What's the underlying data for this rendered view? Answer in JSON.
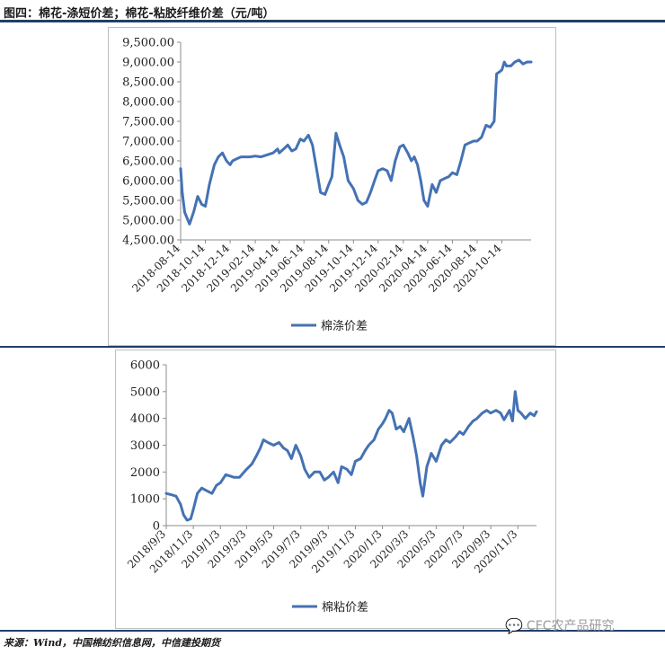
{
  "figure_title": "图四：棉花-涤短价差；棉花-粘胶纤维价差（元/吨）",
  "source_text": "来源：Wind，中国棉纺织信息网，中信建投期货",
  "watermark_text": "CFC农产品研究",
  "colors": {
    "line": "#4472b4",
    "rule": "#1f3f6b",
    "axis": "#8c8c8c"
  },
  "chart_data": [
    {
      "type": "line",
      "title": "",
      "xlabel": "",
      "ylabel": "",
      "ylim": [
        4500,
        9500
      ],
      "yticks": [
        4500,
        5000,
        5500,
        6000,
        6500,
        7000,
        7500,
        8000,
        8500,
        9000,
        9500
      ],
      "ytick_labels": [
        "4,500.00",
        "5,000.00",
        "5,500.00",
        "6,000.00",
        "6,500.00",
        "7,000.00",
        "7,500.00",
        "8,000.00",
        "8,500.00",
        "9,000.00",
        "9,500.00"
      ],
      "x_start": "2018-08-14",
      "x_end": "2020-12-25",
      "xtick_labels": [
        "2018-08-14",
        "2018-10-14",
        "2018-12-14",
        "2019-02-14",
        "2019-04-14",
        "2019-06-14",
        "2019-08-14",
        "2019-10-14",
        "2019-12-14",
        "2020-02-14",
        "2020-04-14",
        "2020-06-14",
        "2020-08-14",
        "2020-10-14"
      ],
      "grid": false,
      "legend_position": "bottom",
      "series": [
        {
          "name": "棉涤价差",
          "x": [
            "2018-08-14",
            "2018-08-18",
            "2018-08-24",
            "2018-09-05",
            "2018-09-15",
            "2018-09-25",
            "2018-10-05",
            "2018-10-14",
            "2018-10-24",
            "2018-11-05",
            "2018-11-15",
            "2018-11-25",
            "2018-12-05",
            "2018-12-14",
            "2018-12-20",
            "2018-12-30",
            "2019-01-10",
            "2019-01-20",
            "2019-02-01",
            "2019-02-14",
            "2019-02-28",
            "2019-03-15",
            "2019-03-30",
            "2019-04-10",
            "2019-04-14",
            "2019-04-25",
            "2019-05-05",
            "2019-05-15",
            "2019-05-25",
            "2019-06-05",
            "2019-06-14",
            "2019-06-25",
            "2019-07-05",
            "2019-07-15",
            "2019-07-25",
            "2019-08-05",
            "2019-08-14",
            "2019-08-22",
            "2019-09-01",
            "2019-09-10",
            "2019-09-20",
            "2019-10-01",
            "2019-10-14",
            "2019-10-25",
            "2019-11-05",
            "2019-11-15",
            "2019-11-25",
            "2019-12-05",
            "2019-12-14",
            "2019-12-25",
            "2020-01-05",
            "2020-01-15",
            "2020-01-25",
            "2020-02-05",
            "2020-02-14",
            "2020-02-25",
            "2020-03-05",
            "2020-03-12",
            "2020-03-20",
            "2020-03-28",
            "2020-04-05",
            "2020-04-14",
            "2020-04-25",
            "2020-05-05",
            "2020-05-15",
            "2020-05-25",
            "2020-06-05",
            "2020-06-14",
            "2020-06-25",
            "2020-07-05",
            "2020-07-15",
            "2020-07-25",
            "2020-08-05",
            "2020-08-14",
            "2020-08-25",
            "2020-09-05",
            "2020-09-15",
            "2020-09-25",
            "2020-10-01",
            "2020-10-08",
            "2020-10-14",
            "2020-10-20",
            "2020-10-25",
            "2020-11-05",
            "2020-11-15",
            "2020-11-25",
            "2020-12-05",
            "2020-12-15",
            "2020-12-25"
          ],
          "values": [
            6300,
            5700,
            5200,
            4900,
            5200,
            5600,
            5400,
            5350,
            5900,
            6400,
            6600,
            6700,
            6500,
            6400,
            6500,
            6550,
            6600,
            6600,
            6600,
            6620,
            6600,
            6650,
            6700,
            6800,
            6700,
            6800,
            6900,
            6750,
            6800,
            7050,
            7000,
            7150,
            6900,
            6300,
            5700,
            5650,
            5900,
            6100,
            7200,
            6900,
            6600,
            6000,
            5800,
            5500,
            5400,
            5450,
            5700,
            6000,
            6250,
            6300,
            6250,
            6000,
            6500,
            6850,
            6900,
            6700,
            6500,
            6600,
            6400,
            6000,
            5500,
            5350,
            5900,
            5700,
            6000,
            6050,
            6100,
            6200,
            6150,
            6500,
            6900,
            6950,
            7000,
            7000,
            7100,
            7400,
            7350,
            7500,
            8700,
            8750,
            8800,
            9000,
            8900,
            8900,
            9000,
            9050,
            8950,
            9000,
            9000
          ]
        }
      ]
    },
    {
      "type": "line",
      "title": "",
      "xlabel": "",
      "ylabel": "",
      "ylim": [
        0,
        6000
      ],
      "yticks": [
        0,
        1000,
        2000,
        3000,
        4000,
        5000,
        6000
      ],
      "ytick_labels": [
        "0",
        "1000",
        "2000",
        "3000",
        "4000",
        "5000",
        "6000"
      ],
      "x_start": "2018-09-03",
      "x_end": "2020-12-15",
      "xtick_labels": [
        "2018/9/3",
        "2018/11/3",
        "2019/1/3",
        "2019/3/3",
        "2019/5/3",
        "2019/7/3",
        "2019/9/3",
        "2019/11/3",
        "2020/1/3",
        "2020/3/3",
        "2020/5/3",
        "2020/7/3",
        "2020/9/3",
        "2020/11/3"
      ],
      "grid": false,
      "legend_position": "bottom",
      "series": [
        {
          "name": "棉粘价差",
          "x": [
            "2018-09-03",
            "2018-09-15",
            "2018-09-25",
            "2018-10-05",
            "2018-10-12",
            "2018-10-20",
            "2018-10-28",
            "2018-11-03",
            "2018-11-12",
            "2018-11-22",
            "2018-12-03",
            "2018-12-15",
            "2018-12-25",
            "2019-01-03",
            "2019-01-15",
            "2019-01-25",
            "2019-02-03",
            "2019-02-15",
            "2019-03-03",
            "2019-03-15",
            "2019-03-25",
            "2019-04-03",
            "2019-04-10",
            "2019-04-20",
            "2019-05-03",
            "2019-05-15",
            "2019-05-25",
            "2019-06-03",
            "2019-06-12",
            "2019-06-22",
            "2019-07-03",
            "2019-07-12",
            "2019-07-22",
            "2019-08-03",
            "2019-08-15",
            "2019-08-25",
            "2019-09-03",
            "2019-09-15",
            "2019-09-25",
            "2019-10-03",
            "2019-10-15",
            "2019-10-25",
            "2019-11-03",
            "2019-11-15",
            "2019-11-25",
            "2019-12-03",
            "2019-12-15",
            "2019-12-25",
            "2020-01-03",
            "2020-01-10",
            "2020-01-18",
            "2020-01-25",
            "2020-02-03",
            "2020-02-12",
            "2020-02-20",
            "2020-03-03",
            "2020-03-12",
            "2020-03-20",
            "2020-03-28",
            "2020-04-03",
            "2020-04-12",
            "2020-04-22",
            "2020-05-03",
            "2020-05-15",
            "2020-05-25",
            "2020-06-03",
            "2020-06-15",
            "2020-06-25",
            "2020-07-03",
            "2020-07-15",
            "2020-07-25",
            "2020-08-03",
            "2020-08-15",
            "2020-08-25",
            "2020-09-03",
            "2020-09-15",
            "2020-09-25",
            "2020-10-03",
            "2020-10-15",
            "2020-10-22",
            "2020-10-28",
            "2020-11-03",
            "2020-11-10",
            "2020-11-20",
            "2020-12-01",
            "2020-12-10",
            "2020-12-15"
          ],
          "values": [
            1200,
            1150,
            1100,
            800,
            400,
            200,
            250,
            600,
            1200,
            1400,
            1300,
            1200,
            1500,
            1600,
            1900,
            1850,
            1800,
            1800,
            2100,
            2300,
            2600,
            2900,
            3200,
            3100,
            3000,
            3100,
            2900,
            2800,
            2500,
            3000,
            2600,
            2100,
            1800,
            2000,
            2000,
            1700,
            1800,
            2000,
            1600,
            2200,
            2100,
            1900,
            2400,
            2500,
            2800,
            3000,
            3200,
            3600,
            3800,
            4000,
            4300,
            4200,
            3600,
            3700,
            3500,
            4000,
            3300,
            2600,
            1600,
            1100,
            2200,
            2700,
            2400,
            3000,
            3200,
            3100,
            3300,
            3500,
            3400,
            3700,
            3900,
            4000,
            4200,
            4300,
            4200,
            4300,
            4200,
            3950,
            4300,
            3900,
            5000,
            4300,
            4200,
            4000,
            4200,
            4100,
            4250
          ]
        }
      ]
    }
  ]
}
